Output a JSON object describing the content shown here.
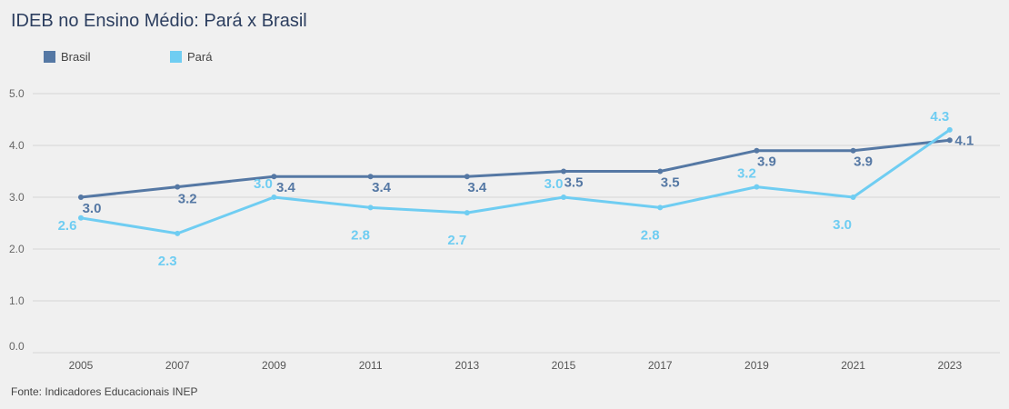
{
  "chart_data": {
    "type": "line",
    "title": "IDEB no Ensino Médio: Pará x Brasil",
    "categories": [
      "2005",
      "2007",
      "2009",
      "2011",
      "2013",
      "2015",
      "2017",
      "2019",
      "2021",
      "2023"
    ],
    "series": [
      {
        "name": "Brasil",
        "color": "#5578a4",
        "values": [
          3.0,
          3.2,
          3.4,
          3.4,
          3.4,
          3.5,
          3.5,
          3.9,
          3.9,
          4.1
        ],
        "labels": [
          "3.0",
          "3.2",
          "3.4",
          "3.4",
          "3.4",
          "3.5",
          "3.5",
          "3.9",
          "3.9",
          "4.1"
        ]
      },
      {
        "name": "Pará",
        "color": "#6fcdf2",
        "values": [
          2.6,
          2.3,
          3.0,
          2.8,
          2.7,
          3.0,
          2.8,
          3.2,
          3.0,
          4.3
        ],
        "labels": [
          "2.6",
          "2.3",
          "3.0",
          "2.8",
          "2.7",
          "3.0",
          "2.8",
          "3.2",
          "3.0",
          "4.3"
        ]
      }
    ],
    "yticks": [
      "0.0",
      "1.0",
      "2.0",
      "3.0",
      "4.0",
      "5.0"
    ],
    "ylim": [
      0,
      5
    ],
    "grid": true,
    "legend_position": "top-left",
    "source": "Fonte: Indicadores Educacionais INEP"
  }
}
